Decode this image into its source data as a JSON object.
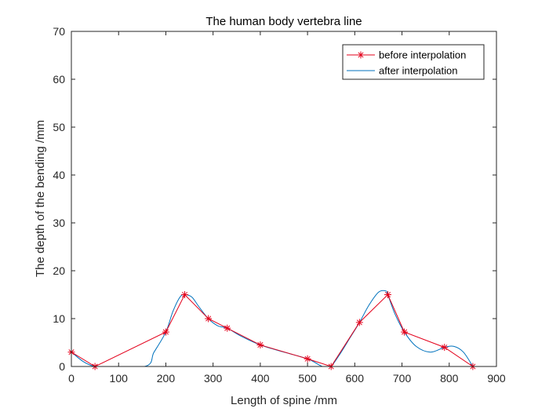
{
  "chart_data": {
    "type": "line",
    "title": "The human body vertebra line",
    "xlabel": "Length of spine  /mm",
    "ylabel": "The depth of the bending  /mm",
    "xlim": [
      0,
      900
    ],
    "ylim": [
      0,
      70
    ],
    "xticks": [
      0,
      100,
      200,
      300,
      400,
      500,
      600,
      700,
      800,
      900
    ],
    "yticks": [
      0,
      10,
      20,
      30,
      40,
      50,
      60,
      70
    ],
    "grid": false,
    "legend_position": "top-right",
    "series": [
      {
        "name": "before interpolation",
        "color": "#e3001b",
        "marker": "asterisk",
        "x": [
          0,
          50,
          200,
          240,
          290,
          330,
          400,
          500,
          550,
          610,
          670,
          705,
          790,
          850
        ],
        "y": [
          3,
          0,
          7.2,
          15,
          10,
          8,
          4.5,
          1.6,
          0,
          9.2,
          15,
          7.2,
          4,
          0
        ]
      },
      {
        "name": "after interpolation",
        "color": "#0072bd",
        "marker": "none",
        "x": [
          0,
          50,
          155,
          175,
          200,
          215,
          230,
          240,
          255,
          270,
          290,
          310,
          330,
          360,
          400,
          450,
          500,
          525,
          540,
          550,
          570,
          590,
          610,
          630,
          650,
          665,
          670,
          685,
          705,
          730,
          760,
          790,
          810,
          830,
          850
        ],
        "y": [
          3,
          0,
          0,
          3,
          7.2,
          11.5,
          14.5,
          15,
          14.5,
          12.5,
          10,
          8.5,
          8,
          6.3,
          4.5,
          3,
          1.6,
          0.3,
          -0.3,
          0,
          2.8,
          6,
          9.2,
          12.8,
          15.5,
          15.8,
          15,
          11,
          7.2,
          4.2,
          3,
          4,
          4.2,
          3,
          0
        ]
      }
    ]
  }
}
